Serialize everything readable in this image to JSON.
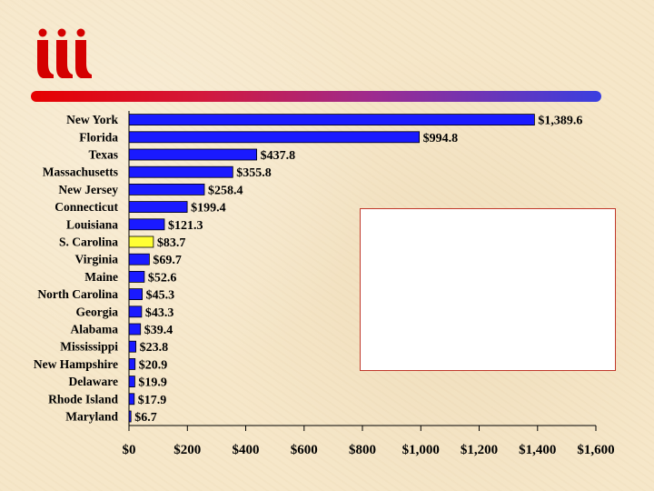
{
  "colors": {
    "bar": "#1a1aff",
    "highlight": "#ffff33",
    "bar_outline": "#000000",
    "logo": "#d40000",
    "legend_border": "#c0392b"
  },
  "logo": {
    "icon": "iii-logo-icon"
  },
  "chart_data": {
    "type": "bar",
    "orientation": "horizontal",
    "title": "",
    "xlabel": "",
    "ylabel": "",
    "categories": [
      "New York",
      "Florida",
      "Texas",
      "Massachusetts",
      "New Jersey",
      "Connecticut",
      "Louisiana",
      "S. Carolina",
      "Virginia",
      "Maine",
      "North Carolina",
      "Georgia",
      "Alabama",
      "Mississippi",
      "New Hampshire",
      "Delaware",
      "Rhode Island",
      "Maryland"
    ],
    "values": [
      1389.6,
      994.8,
      437.8,
      355.8,
      258.4,
      199.4,
      121.3,
      83.7,
      69.7,
      52.6,
      45.3,
      43.3,
      39.4,
      23.8,
      20.9,
      19.9,
      17.9,
      6.7
    ],
    "value_labels": [
      "$1,389.6",
      "$994.8",
      "$437.8",
      "$355.8",
      "$258.4",
      "$199.4",
      "$121.3",
      "$83.7",
      "$69.7",
      "$52.6",
      "$45.3",
      "$43.3",
      "$39.4",
      "$23.8",
      "$20.9",
      "$19.9",
      "$17.9",
      "$6.7"
    ],
    "highlighted_category": "S. Carolina",
    "xlim": [
      0,
      1600
    ],
    "ticks": [
      0,
      200,
      400,
      600,
      800,
      1000,
      1200,
      1400,
      1600
    ],
    "tick_labels": [
      "$0",
      "$200",
      "$400",
      "$600",
      "$800",
      "$1,000",
      "$1,200",
      "$1,400",
      "$1,600"
    ],
    "grid": false,
    "legend": "right (blank box)"
  }
}
